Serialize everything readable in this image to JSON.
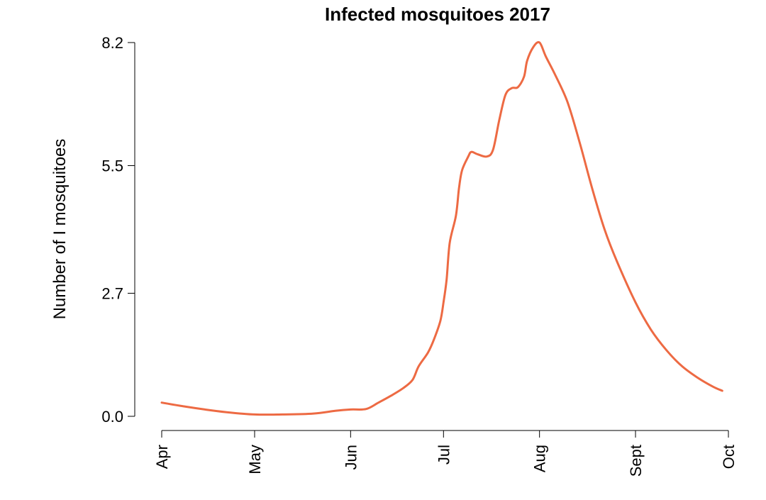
{
  "chart_data": {
    "type": "line",
    "title": "Infected mosquitoes 2017",
    "xlabel": "",
    "ylabel": "Number of I mosquitoes",
    "x_axis": {
      "ticks": [
        "Apr",
        "May",
        "Jun",
        "Jul",
        "Aug",
        "Sept",
        "Oct"
      ],
      "tick_dates": [
        "2017-04-01",
        "2017-05-01",
        "2017-06-01",
        "2017-07-01",
        "2017-08-01",
        "2017-09-01",
        "2017-10-01"
      ],
      "range": [
        "2017-04-01",
        "2017-10-01"
      ]
    },
    "y_axis": {
      "ticks": [
        0.0,
        2.7,
        5.5,
        8.2
      ],
      "tick_labels": [
        "0.0",
        "2.7",
        "5.5",
        "8.2"
      ],
      "range": [
        0,
        8.2
      ]
    },
    "grid": false,
    "series": [
      {
        "color": "#ED6A43",
        "points": [
          [
            "2017-04-01",
            0.3
          ],
          [
            "2017-04-08",
            0.22
          ],
          [
            "2017-04-15",
            0.15
          ],
          [
            "2017-04-22",
            0.09
          ],
          [
            "2017-05-01",
            0.04
          ],
          [
            "2017-05-10",
            0.04
          ],
          [
            "2017-05-20",
            0.06
          ],
          [
            "2017-05-27",
            0.12
          ],
          [
            "2017-06-01",
            0.15
          ],
          [
            "2017-06-06",
            0.16
          ],
          [
            "2017-06-10",
            0.3
          ],
          [
            "2017-06-14",
            0.45
          ],
          [
            "2017-06-18",
            0.62
          ],
          [
            "2017-06-21",
            0.8
          ],
          [
            "2017-06-23",
            1.1
          ],
          [
            "2017-06-26",
            1.4
          ],
          [
            "2017-06-28",
            1.7
          ],
          [
            "2017-06-30",
            2.1
          ],
          [
            "2017-07-01",
            2.5
          ],
          [
            "2017-07-02",
            3.0
          ],
          [
            "2017-07-03",
            3.8
          ],
          [
            "2017-07-05",
            4.4
          ],
          [
            "2017-07-06",
            5.0
          ],
          [
            "2017-07-07",
            5.4
          ],
          [
            "2017-07-09",
            5.7
          ],
          [
            "2017-07-10",
            5.8
          ],
          [
            "2017-07-12",
            5.75
          ],
          [
            "2017-07-15",
            5.7
          ],
          [
            "2017-07-17",
            5.85
          ],
          [
            "2017-07-19",
            6.5
          ],
          [
            "2017-07-21",
            7.05
          ],
          [
            "2017-07-23",
            7.2
          ],
          [
            "2017-07-25",
            7.22
          ],
          [
            "2017-07-27",
            7.45
          ],
          [
            "2017-07-28",
            7.8
          ],
          [
            "2017-07-30",
            8.1
          ],
          [
            "2017-08-01",
            8.2
          ],
          [
            "2017-08-03",
            7.9
          ],
          [
            "2017-08-06",
            7.5
          ],
          [
            "2017-08-10",
            6.9
          ],
          [
            "2017-08-14",
            6.0
          ],
          [
            "2017-08-18",
            5.0
          ],
          [
            "2017-08-22",
            4.1
          ],
          [
            "2017-08-26",
            3.4
          ],
          [
            "2017-09-01",
            2.5
          ],
          [
            "2017-09-06",
            1.9
          ],
          [
            "2017-09-11",
            1.45
          ],
          [
            "2017-09-16",
            1.1
          ],
          [
            "2017-09-21",
            0.85
          ],
          [
            "2017-09-26",
            0.65
          ],
          [
            "2017-09-29",
            0.56
          ]
        ]
      }
    ]
  }
}
